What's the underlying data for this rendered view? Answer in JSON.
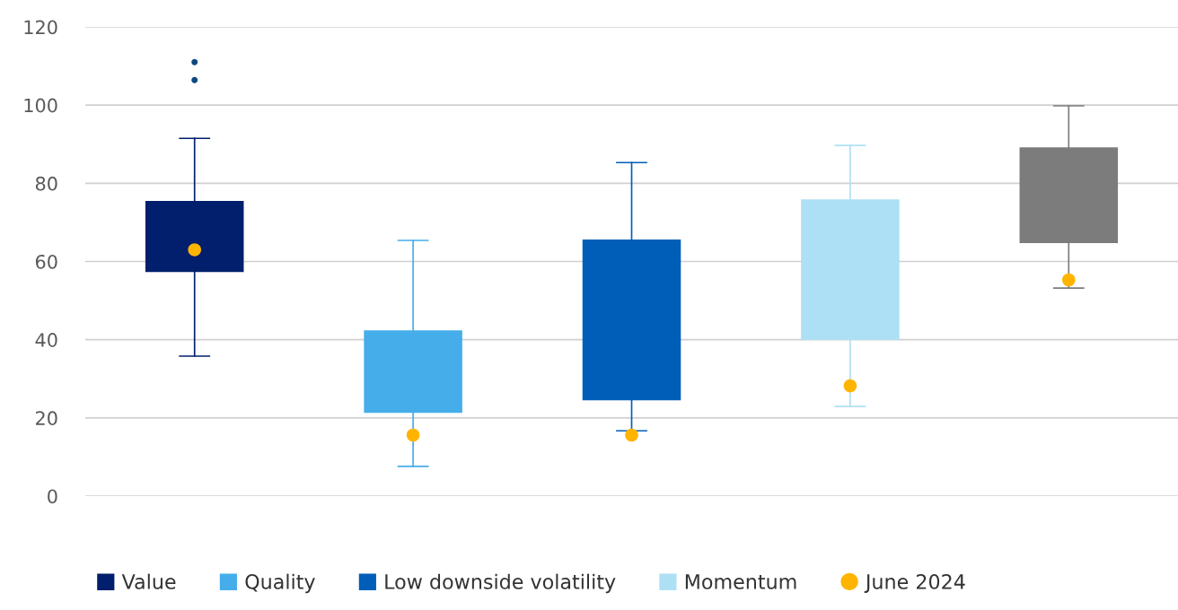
{
  "chart_data": {
    "type": "box",
    "categories": [
      null,
      null,
      null,
      null,
      null
    ],
    "ylim": [
      0,
      120
    ],
    "yticks": [
      0,
      20,
      40,
      60,
      80,
      100,
      120
    ],
    "grid": "y",
    "legend": "bottom",
    "tick_labels": "y",
    "series": [
      {
        "name": "Value",
        "color": "#021f6d",
        "boxes": [
          {
            "low": 35.8,
            "q1": 57.3,
            "q3": 75.5,
            "high": 91.5,
            "outliers": [
              106.4,
              111
            ]
          },
          null,
          null,
          null,
          null
        ]
      },
      {
        "name": "Quality",
        "color": "#45aeea",
        "boxes": [
          null,
          {
            "low": 7.6,
            "q1": 21.3,
            "q3": 42.4,
            "high": 65.4
          },
          null,
          null,
          null
        ]
      },
      {
        "name": "Low downside volatility",
        "color": "#005eb8",
        "boxes": [
          null,
          null,
          {
            "low": 16.7,
            "q1": 24.5,
            "q3": 65.6,
            "high": 85.3
          },
          null,
          null
        ]
      },
      {
        "name": "Momentum",
        "color": "#aee0f5",
        "boxes": [
          null,
          null,
          null,
          {
            "low": 22.9,
            "q1": 39.9,
            "q3": 75.9,
            "high": 89.7
          },
          null
        ]
      },
      {
        "color": "#7b7c7b",
        "boxes": [
          null,
          null,
          null,
          null,
          {
            "low": 53.2,
            "q1": 64.7,
            "q3": 89.2,
            "high": 99.8
          }
        ]
      },
      {
        "name": "June 2024",
        "type": "scatter",
        "color": "#ffb400",
        "marker": "circle",
        "values": [
          63,
          15.6,
          15.6,
          28.2,
          55.3
        ]
      }
    ]
  }
}
